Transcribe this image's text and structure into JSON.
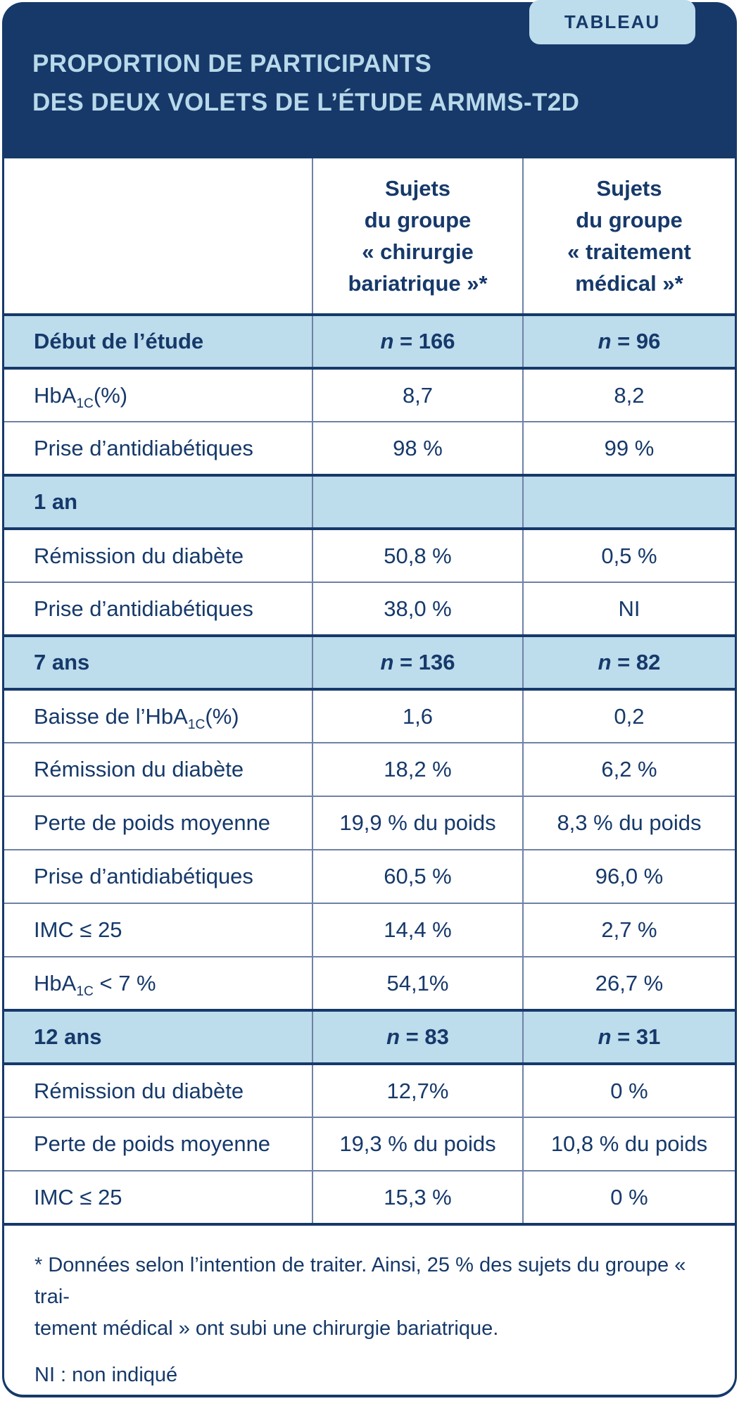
{
  "badge_label": "TABLEAU",
  "title": {
    "line1": "PROPORTION DE PARTICIPANTS",
    "line2": "DES DEUX VOLETS DE L’ÉTUDE ARMMS-T2D"
  },
  "colors": {
    "navy": "#16396a",
    "light_blue": "#bddcec",
    "title_blue": "#b9d9ea",
    "divider_slate": "#6f81a5"
  },
  "table": {
    "col_headers": [
      "",
      "Sujets\ndu groupe\n« chirurgie\nbariatrique »*",
      "Sujets\ndu groupe\n« traitement\nmédical »*"
    ],
    "rows": [
      {
        "type": "section",
        "label": "Début de l’étude",
        "col1": "_n_ = 166",
        "col2": "_n_ = 96"
      },
      {
        "type": "data",
        "label": "HbA~1C~(%)",
        "col1": "8,7",
        "col2": "8,2"
      },
      {
        "type": "data",
        "label": "Prise d’antidiabétiques",
        "col1": "98 %",
        "col2": "99 %"
      },
      {
        "type": "section",
        "label": "1 an",
        "col1": "",
        "col2": ""
      },
      {
        "type": "data",
        "label": "Rémission du diabète",
        "col1": "50,8 %",
        "col2": "0,5 %"
      },
      {
        "type": "data",
        "label": "Prise d’antidiabétiques",
        "col1": "38,0 %",
        "col2": "NI"
      },
      {
        "type": "section",
        "label": "7 ans",
        "col1": "_n_ = 136",
        "col2": "_n_ = 82"
      },
      {
        "type": "data",
        "label": "Baisse de l’HbA~1C~(%)",
        "col1": "1,6",
        "col2": "0,2"
      },
      {
        "type": "data",
        "label": "Rémission du diabète",
        "col1": "18,2 %",
        "col2": "6,2 %"
      },
      {
        "type": "data",
        "label": "Perte de poids moyenne",
        "col1": "19,9 % du poids",
        "col2": "8,3 % du poids"
      },
      {
        "type": "data",
        "label": "Prise d’antidiabétiques",
        "col1": "60,5 %",
        "col2": "96,0 %"
      },
      {
        "type": "data",
        "label": "IMC ≤ 25",
        "col1": "14,4 %",
        "col2": "2,7 %"
      },
      {
        "type": "data",
        "label": "HbA~1C~ < 7 %",
        "col1": "54,1%",
        "col2": "26,7 %"
      },
      {
        "type": "section",
        "label": "12 ans",
        "col1": "_n_ = 83",
        "col2": "_n_ = 31"
      },
      {
        "type": "data",
        "label": "Rémission du diabète",
        "col1": "12,7%",
        "col2": "0 %"
      },
      {
        "type": "data",
        "label": "Perte de poids moyenne",
        "col1": "19,3 % du poids",
        "col2": "10,8 % du poids"
      },
      {
        "type": "data",
        "label": "IMC ≤ 25",
        "col1": "15,3 %",
        "col2": "0 %"
      }
    ]
  },
  "footnotes": [
    "* Données selon l’intention de traiter. Ainsi, 25 % des sujets du groupe « trai-\ntement médical » ont subi une chirurgie bariatrique.",
    "NI : non indiqué"
  ],
  "chart_data": {
    "type": "table",
    "title": "PROPORTION DE PARTICIPANTS DES DEUX VOLETS DE L’ÉTUDE ARMMS-T2D",
    "badge": "TABLEAU",
    "columns": [
      "",
      "Sujets du groupe « chirurgie bariatrique »*",
      "Sujets du groupe « traitement médical »*"
    ],
    "rows": [
      {
        "section": true,
        "label": "Début de l’étude",
        "chirurgie_bariatrique": "n = 166",
        "traitement_medical": "n = 96"
      },
      {
        "section": false,
        "label": "HbA1C (%)",
        "chirurgie_bariatrique": "8,7",
        "traitement_medical": "8,2"
      },
      {
        "section": false,
        "label": "Prise d’antidiabétiques",
        "chirurgie_bariatrique": "98 %",
        "traitement_medical": "99 %"
      },
      {
        "section": true,
        "label": "1 an",
        "chirurgie_bariatrique": "",
        "traitement_medical": ""
      },
      {
        "section": false,
        "label": "Rémission du diabète",
        "chirurgie_bariatrique": "50,8 %",
        "traitement_medical": "0,5 %"
      },
      {
        "section": false,
        "label": "Prise d’antidiabétiques",
        "chirurgie_bariatrique": "38,0 %",
        "traitement_medical": "NI"
      },
      {
        "section": true,
        "label": "7 ans",
        "chirurgie_bariatrique": "n = 136",
        "traitement_medical": "n = 82"
      },
      {
        "section": false,
        "label": "Baisse de l’HbA1C (%)",
        "chirurgie_bariatrique": "1,6",
        "traitement_medical": "0,2"
      },
      {
        "section": false,
        "label": "Rémission du diabète",
        "chirurgie_bariatrique": "18,2 %",
        "traitement_medical": "6,2 %"
      },
      {
        "section": false,
        "label": "Perte de poids moyenne",
        "chirurgie_bariatrique": "19,9 % du poids",
        "traitement_medical": "8,3 % du poids"
      },
      {
        "section": false,
        "label": "Prise d’antidiabétiques",
        "chirurgie_bariatrique": "60,5 %",
        "traitement_medical": "96,0 %"
      },
      {
        "section": false,
        "label": "IMC ≤ 25",
        "chirurgie_bariatrique": "14,4 %",
        "traitement_medical": "2,7 %"
      },
      {
        "section": false,
        "label": "HbA1C < 7 %",
        "chirurgie_bariatrique": "54,1 %",
        "traitement_medical": "26,7 %"
      },
      {
        "section": true,
        "label": "12 ans",
        "chirurgie_bariatrique": "n = 83",
        "traitement_medical": "n = 31"
      },
      {
        "section": false,
        "label": "Rémission du diabète",
        "chirurgie_bariatrique": "12,7 %",
        "traitement_medical": "0 %"
      },
      {
        "section": false,
        "label": "Perte de poids moyenne",
        "chirurgie_bariatrique": "19,3 % du poids",
        "traitement_medical": "10,8 % du poids"
      },
      {
        "section": false,
        "label": "IMC ≤ 25",
        "chirurgie_bariatrique": "15,3 %",
        "traitement_medical": "0 %"
      }
    ],
    "footnotes": [
      "* Données selon l’intention de traiter. Ainsi, 25 % des sujets du groupe « traitement médical » ont subi une chirurgie bariatrique.",
      "NI : non indiqué"
    ],
    "layout_hints": {
      "section_rows_highlighted": true,
      "columns_centered": [
        1,
        2
      ]
    }
  }
}
